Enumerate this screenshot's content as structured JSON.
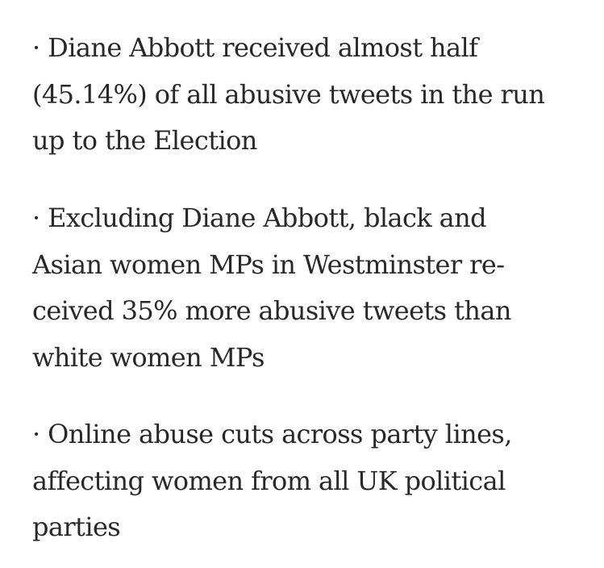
{
  "bullets": [
    {
      "lines": [
        "· Diane Abbott received almost half",
        "(45.14%) of all abusive tweets in the run",
        "up to the Election"
      ]
    },
    {
      "lines": [
        "· Excluding Diane Abbott, black and",
        "Asian women MPs in Westminster re-",
        "ceived 35% more abusive tweets than",
        "white women MPs"
      ]
    },
    {
      "lines": [
        "· Online abuse cuts across party lines,",
        "affecting women from all UK political",
        "parties"
      ]
    }
  ],
  "colors": {
    "text": "#282828",
    "background": "#ffffff"
  }
}
